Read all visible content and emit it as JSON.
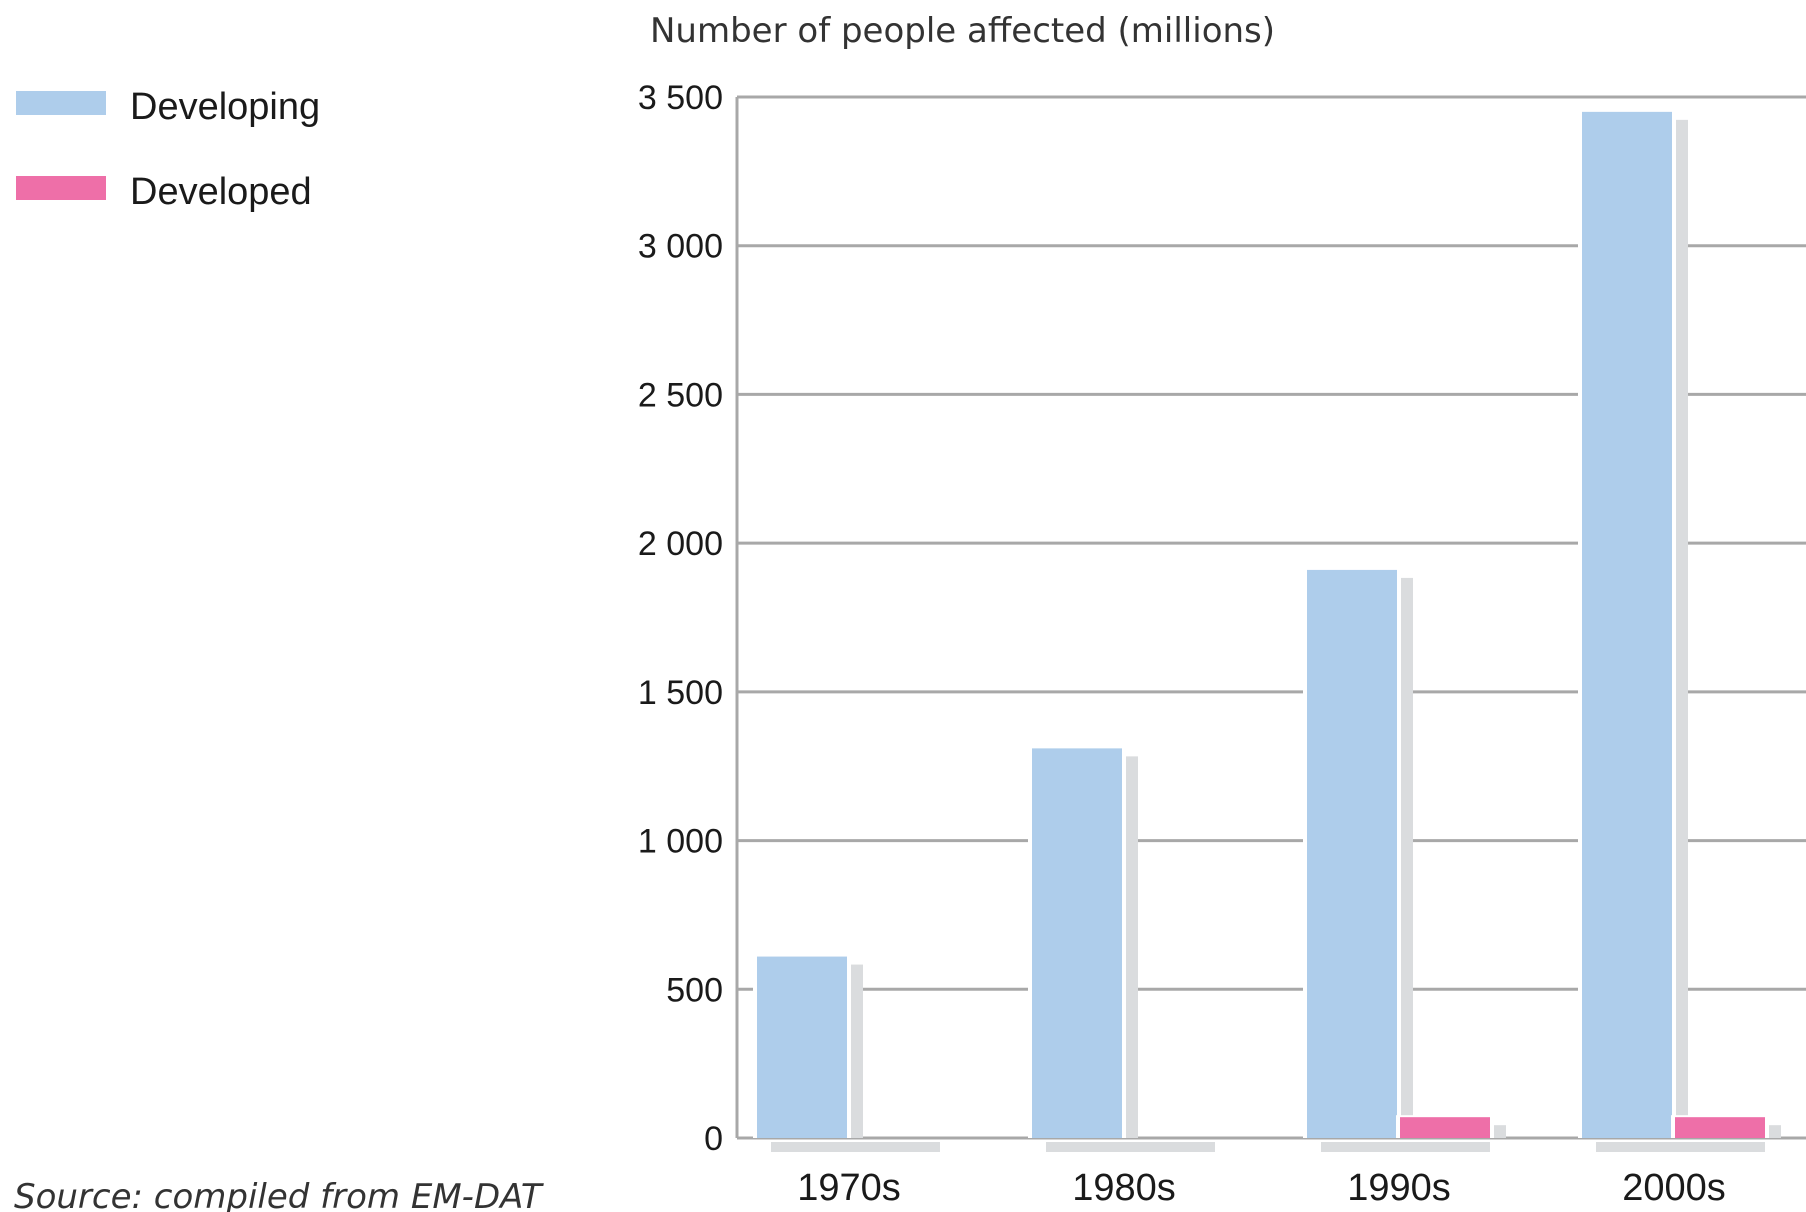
{
  "chart_data": {
    "type": "bar",
    "ylabel": "Number of people affected (millions)",
    "categories": [
      "1970s",
      "1980s",
      "1990s",
      "2000s"
    ],
    "series": [
      {
        "name": "Developing",
        "color": "#aecdeb",
        "values": [
          610,
          1310,
          1910,
          3450
        ]
      },
      {
        "name": "Developed",
        "color": "#ee6fa8",
        "values": [
          0,
          0,
          70,
          70
        ]
      }
    ],
    "ylim": [
      0,
      3500
    ],
    "yticks": [
      0,
      500,
      1000,
      1500,
      2000,
      2500,
      3000,
      3500
    ],
    "ytick_labels": [
      "0",
      "500",
      "1 000",
      "1 500",
      "2 000",
      "2 500",
      "3 000",
      "3 500"
    ],
    "grid": true,
    "legend_position": "top-left",
    "shadow_color": "#dadcde",
    "gridline_color": "#a8a8a8"
  },
  "source": "Source: compiled from EM-DAT"
}
